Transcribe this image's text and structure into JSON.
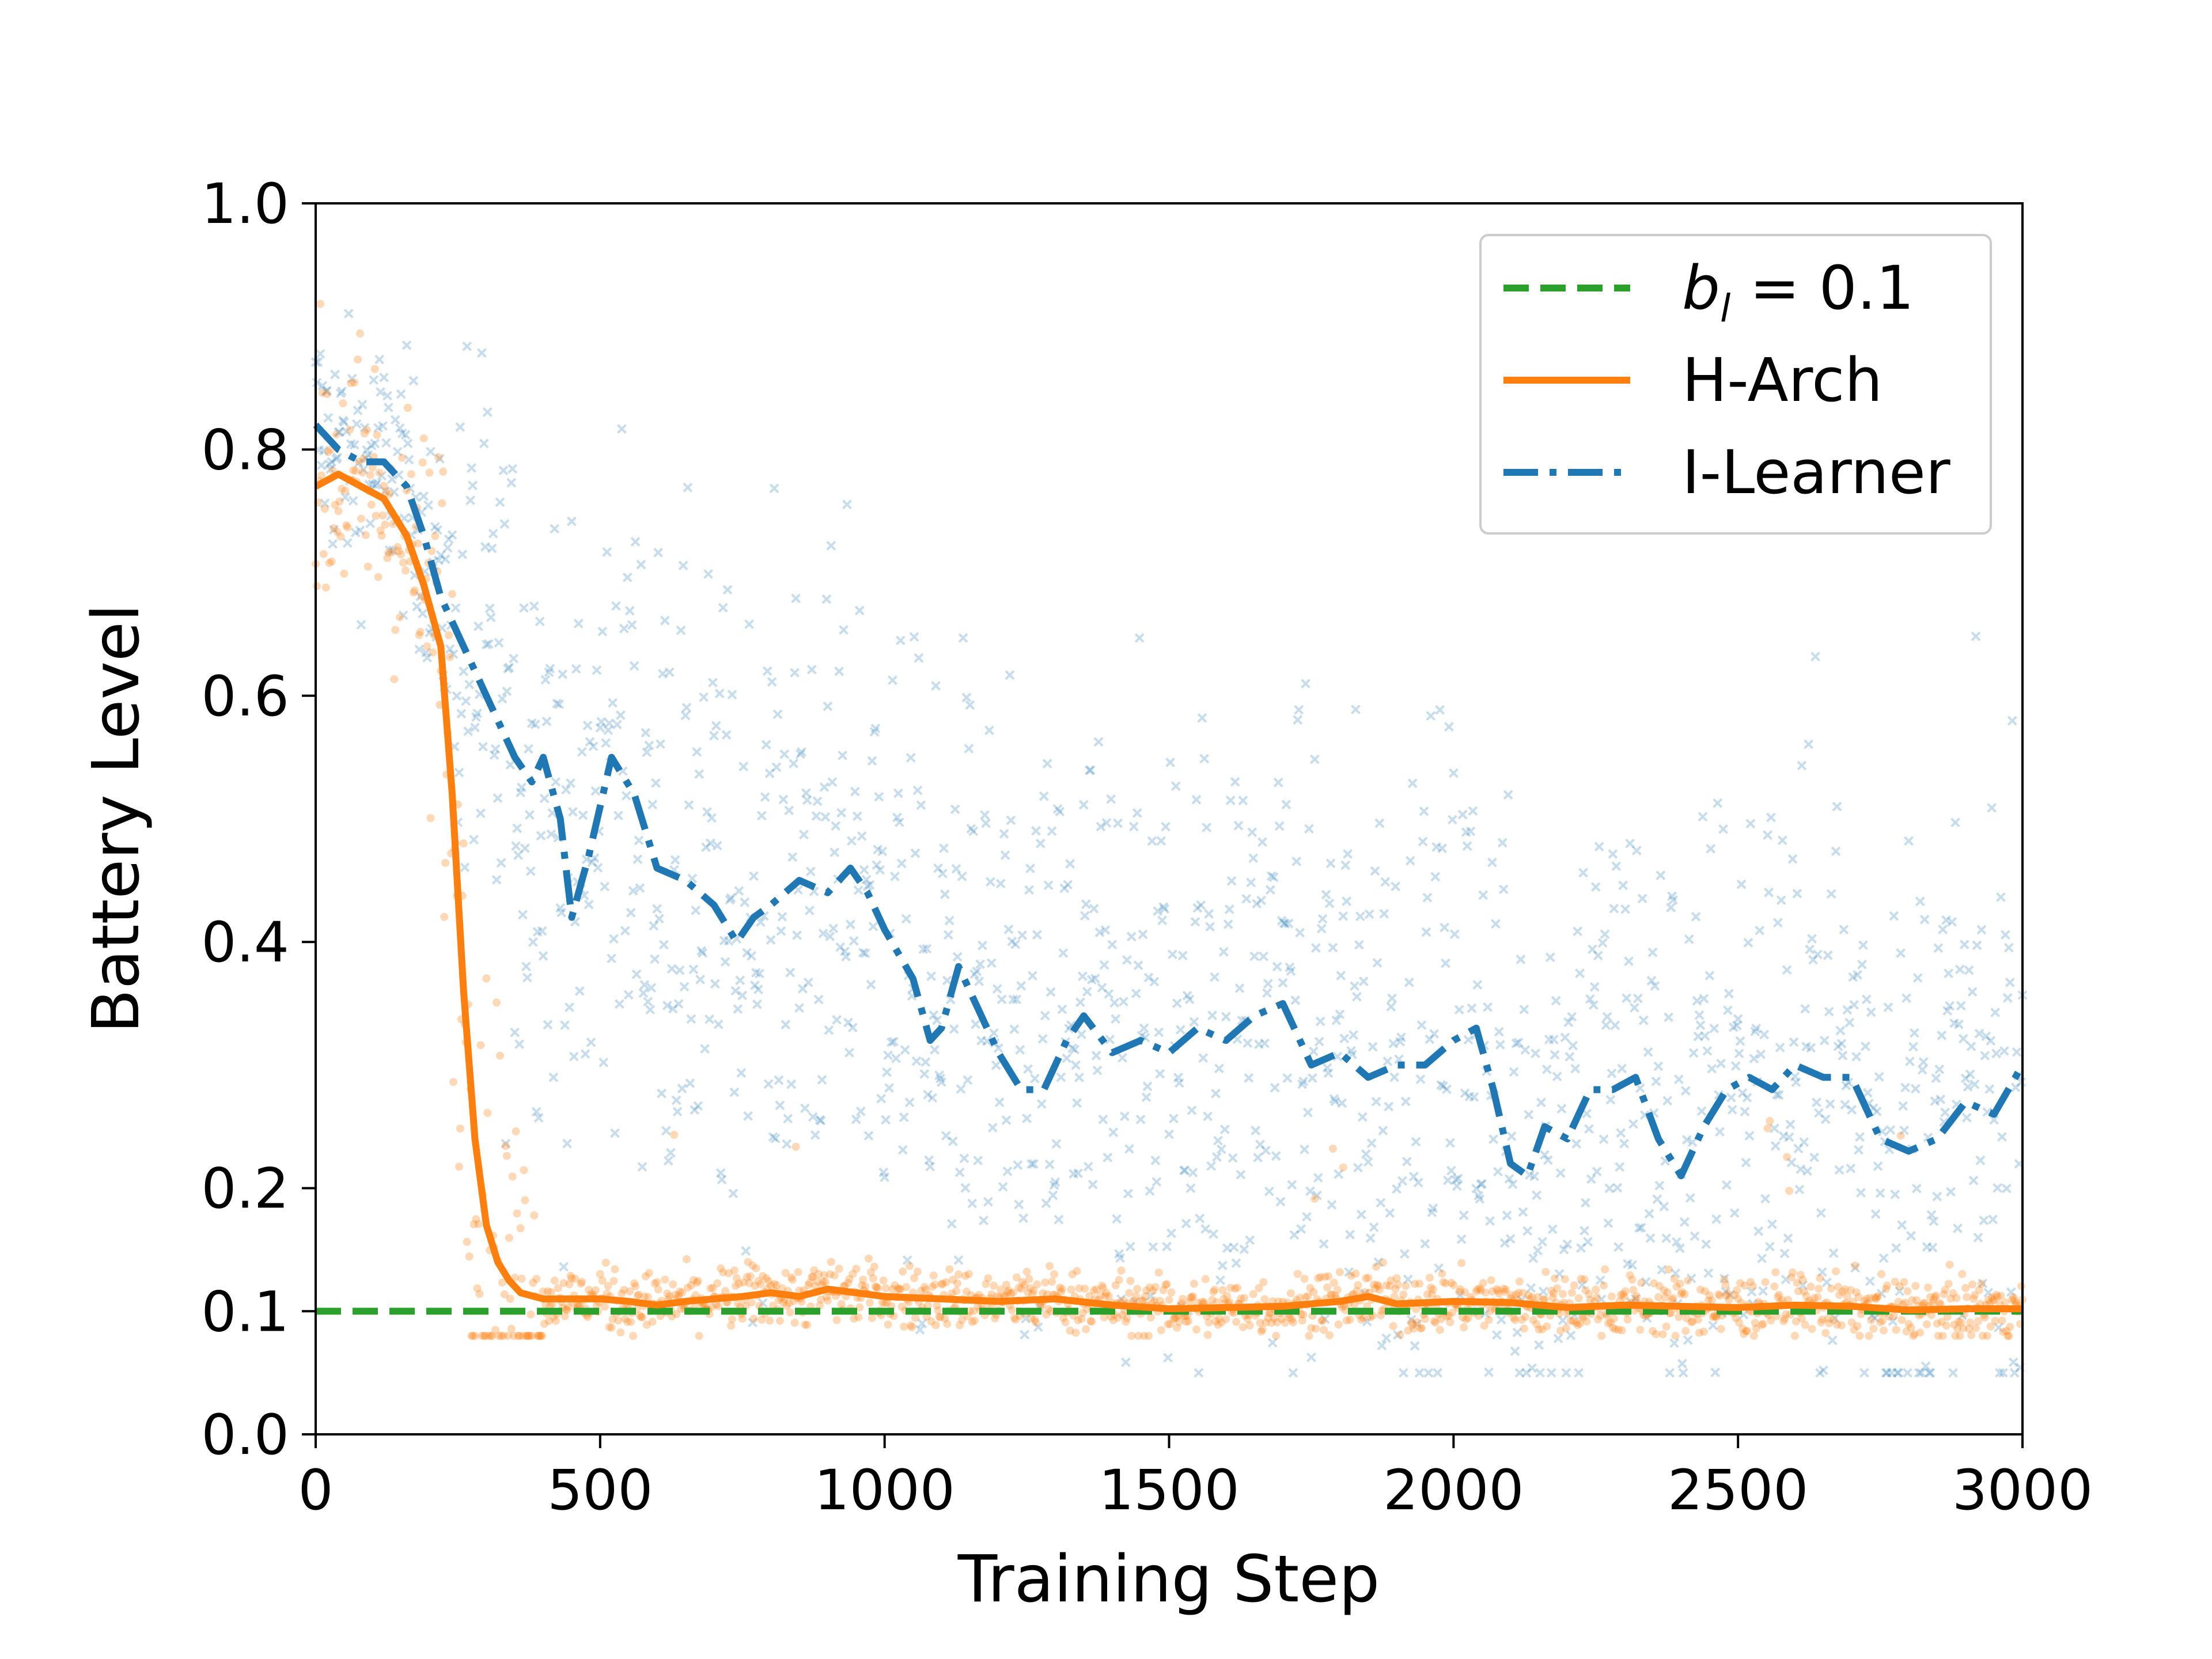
{
  "chart_data": {
    "type": "line",
    "title": "",
    "xlabel": "Training Step",
    "ylabel": "Battery Level",
    "xlim": [
      0,
      3000
    ],
    "ylim": [
      0.0,
      1.0
    ],
    "x_ticks": [
      0,
      500,
      1000,
      1500,
      2000,
      2500,
      3000
    ],
    "x_tick_labels": [
      "0",
      "500",
      "1000",
      "1500",
      "2000",
      "2500",
      "3000"
    ],
    "y_ticks": [
      0.0,
      0.1,
      0.2,
      0.4,
      0.6,
      0.8,
      1.0
    ],
    "y_tick_labels": [
      "0.0",
      "0.1",
      "0.2",
      "0.4",
      "0.6",
      "0.8",
      "1.0"
    ],
    "grid": false,
    "legend_position": "top-right",
    "series": [
      {
        "name": "b_l = 0.1",
        "legend_parts": {
          "var": "b",
          "sub": "l",
          "rest": " = 0.1"
        },
        "style": "dashed",
        "color": "#2ca02c",
        "x": [
          0,
          3000
        ],
        "values": [
          0.1,
          0.1
        ]
      },
      {
        "name": "H-Arch",
        "style": "solid",
        "color": "#ff7f0e",
        "scatter_spread": 0.025,
        "x": [
          0,
          40,
          80,
          120,
          160,
          190,
          220,
          240,
          260,
          280,
          300,
          320,
          340,
          360,
          400,
          450,
          500,
          550,
          600,
          650,
          700,
          750,
          800,
          850,
          900,
          950,
          1000,
          1100,
          1200,
          1300,
          1400,
          1500,
          1600,
          1700,
          1800,
          1850,
          1900,
          2000,
          2100,
          2200,
          2300,
          2400,
          2500,
          2600,
          2700,
          2800,
          2900,
          3000
        ],
        "values": [
          0.77,
          0.78,
          0.77,
          0.76,
          0.73,
          0.69,
          0.64,
          0.52,
          0.36,
          0.24,
          0.17,
          0.14,
          0.125,
          0.115,
          0.11,
          0.11,
          0.11,
          0.108,
          0.105,
          0.108,
          0.11,
          0.112,
          0.115,
          0.112,
          0.118,
          0.115,
          0.112,
          0.11,
          0.108,
          0.11,
          0.105,
          0.102,
          0.103,
          0.104,
          0.108,
          0.112,
          0.106,
          0.108,
          0.107,
          0.103,
          0.105,
          0.104,
          0.103,
          0.105,
          0.104,
          0.101,
          0.102,
          0.102
        ]
      },
      {
        "name": "I-Learner",
        "style": "dashdot",
        "color": "#1f77b4",
        "scatter_spread": 0.13,
        "x": [
          0,
          40,
          80,
          120,
          160,
          190,
          220,
          260,
          300,
          350,
          380,
          400,
          430,
          450,
          480,
          520,
          560,
          600,
          650,
          700,
          740,
          770,
          800,
          850,
          900,
          940,
          970,
          1000,
          1050,
          1080,
          1100,
          1130,
          1160,
          1200,
          1240,
          1280,
          1320,
          1350,
          1400,
          1450,
          1500,
          1550,
          1600,
          1650,
          1700,
          1750,
          1800,
          1850,
          1900,
          1950,
          2000,
          2040,
          2070,
          2100,
          2130,
          2160,
          2200,
          2240,
          2280,
          2320,
          2360,
          2400,
          2440,
          2480,
          2520,
          2560,
          2600,
          2650,
          2700,
          2750,
          2800,
          2850,
          2900,
          2950,
          3000
        ],
        "values": [
          0.82,
          0.8,
          0.79,
          0.79,
          0.77,
          0.73,
          0.68,
          0.64,
          0.6,
          0.55,
          0.53,
          0.55,
          0.5,
          0.42,
          0.47,
          0.55,
          0.52,
          0.46,
          0.45,
          0.43,
          0.4,
          0.42,
          0.43,
          0.45,
          0.44,
          0.46,
          0.44,
          0.41,
          0.37,
          0.32,
          0.33,
          0.38,
          0.35,
          0.31,
          0.28,
          0.28,
          0.32,
          0.34,
          0.31,
          0.32,
          0.31,
          0.33,
          0.32,
          0.34,
          0.35,
          0.3,
          0.31,
          0.29,
          0.3,
          0.3,
          0.32,
          0.33,
          0.28,
          0.22,
          0.21,
          0.25,
          0.24,
          0.28,
          0.28,
          0.29,
          0.24,
          0.21,
          0.25,
          0.28,
          0.29,
          0.28,
          0.3,
          0.29,
          0.29,
          0.24,
          0.23,
          0.24,
          0.27,
          0.26,
          0.3
        ]
      }
    ]
  }
}
